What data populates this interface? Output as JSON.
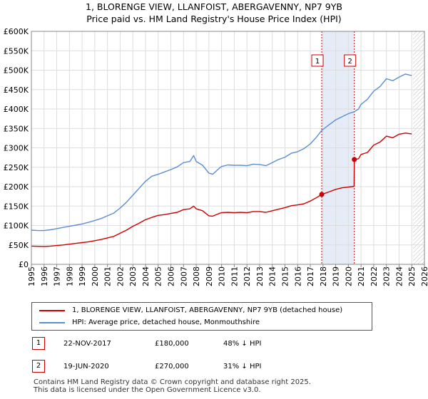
{
  "title_line1": "1, BLORENGE VIEW, LLANFOIST, ABERGAVENNY, NP7 9YB",
  "title_line2": "Price paid vs. HM Land Registry's House Price Index (HPI)",
  "legend": {
    "property_label": "1, BLORENGE VIEW, LLANFOIST, ABERGAVENNY, NP7 9YB (detached house)",
    "hpi_label": "HPI: Average price, detached house, Monmouthshire"
  },
  "transactions": [
    {
      "marker": "1",
      "date": "22-NOV-2017",
      "price": "£180,000",
      "hpi": "48% ↓ HPI"
    },
    {
      "marker": "2",
      "date": "19-JUN-2020",
      "price": "£270,000",
      "hpi": "31% ↓ HPI"
    }
  ],
  "footer_line1": "Contains HM Land Registry data © Crown copyright and database right 2025.",
  "footer_line2": "This data is licensed under the Open Government Licence v3.0.",
  "colors": {
    "property": "#cc0000",
    "hpi": "#5b8ed0",
    "grid": "#dddddd",
    "shade": "#e6ecf7",
    "marker_line": "#cc0000"
  },
  "chart_data": {
    "type": "line",
    "xlim": [
      1995,
      2026
    ],
    "ylim": [
      0,
      600000
    ],
    "x_ticks": [
      "1995",
      "1996",
      "1997",
      "1998",
      "1999",
      "2000",
      "2001",
      "2002",
      "2003",
      "2004",
      "2005",
      "2006",
      "2007",
      "2008",
      "2009",
      "2010",
      "2011",
      "2012",
      "2013",
      "2014",
      "2015",
      "2016",
      "2017",
      "2018",
      "2019",
      "2020",
      "2021",
      "2022",
      "2023",
      "2024",
      "2025",
      "2026"
    ],
    "y_ticks": [
      {
        "value": 0,
        "label": "£0"
      },
      {
        "value": 50000,
        "label": "£50K"
      },
      {
        "value": 100000,
        "label": "£100K"
      },
      {
        "value": 150000,
        "label": "£150K"
      },
      {
        "value": 200000,
        "label": "£200K"
      },
      {
        "value": 250000,
        "label": "£250K"
      },
      {
        "value": 300000,
        "label": "£300K"
      },
      {
        "value": 350000,
        "label": "£350K"
      },
      {
        "value": 400000,
        "label": "£400K"
      },
      {
        "value": 450000,
        "label": "£450K"
      },
      {
        "value": 500000,
        "label": "£500K"
      },
      {
        "value": 550000,
        "label": "£550K"
      },
      {
        "value": 600000,
        "label": "£600K"
      }
    ],
    "grid": true,
    "legend_position": "below",
    "shaded_periods": [
      [
        2017.9,
        2020.47
      ]
    ],
    "hatched_region": [
      2025.1,
      2026
    ],
    "sales": [
      {
        "label": "1",
        "x": 2017.9,
        "y": 180000
      },
      {
        "label": "2",
        "x": 2020.47,
        "y": 270000
      }
    ],
    "series": [
      {
        "name": "1, BLORENGE VIEW, LLANFOIST, ABERGAVENNY, NP7 9YB (detached house)",
        "points": [
          [
            1995,
            47000
          ],
          [
            1995.5,
            46500
          ],
          [
            1996,
            46000
          ],
          [
            1996.5,
            47000
          ],
          [
            1997,
            48500
          ],
          [
            1997.5,
            50000
          ],
          [
            1998,
            52000
          ],
          [
            1998.5,
            54000
          ],
          [
            1999,
            56000
          ],
          [
            1999.5,
            58000
          ],
          [
            2000,
            61000
          ],
          [
            2000.5,
            64000
          ],
          [
            2001,
            68000
          ],
          [
            2001.5,
            72000
          ],
          [
            2002,
            80000
          ],
          [
            2002.5,
            88000
          ],
          [
            2003,
            98000
          ],
          [
            2003.5,
            106000
          ],
          [
            2004,
            115000
          ],
          [
            2004.5,
            121000
          ],
          [
            2005,
            126000
          ],
          [
            2005.5,
            128000
          ],
          [
            2006,
            131000
          ],
          [
            2006.5,
            134000
          ],
          [
            2007,
            141000
          ],
          [
            2007.5,
            143000
          ],
          [
            2007.8,
            150000
          ],
          [
            2008,
            143000
          ],
          [
            2008.5,
            138000
          ],
          [
            2009,
            125000
          ],
          [
            2009.3,
            124000
          ],
          [
            2009.8,
            131000
          ],
          [
            2010,
            133000
          ],
          [
            2010.5,
            134000
          ],
          [
            2011,
            133000
          ],
          [
            2011.5,
            134000
          ],
          [
            2012,
            133000
          ],
          [
            2012.5,
            136000
          ],
          [
            2013,
            136000
          ],
          [
            2013.5,
            134000
          ],
          [
            2014,
            138000
          ],
          [
            2014.5,
            142000
          ],
          [
            2015,
            146000
          ],
          [
            2015.5,
            151000
          ],
          [
            2016,
            153000
          ],
          [
            2016.5,
            156000
          ],
          [
            2017,
            163000
          ],
          [
            2017.5,
            172000
          ],
          [
            2017.9,
            180000
          ],
          [
            2018.5,
            187000
          ],
          [
            2019,
            193000
          ],
          [
            2019.5,
            197000
          ],
          [
            2020,
            199000
          ],
          [
            2020.45,
            201000
          ],
          [
            2020.47,
            270000
          ],
          [
            2020.8,
            272000
          ],
          [
            2021,
            283000
          ],
          [
            2021.5,
            288000
          ],
          [
            2022,
            307000
          ],
          [
            2022.5,
            315000
          ],
          [
            2023,
            330000
          ],
          [
            2023.5,
            326000
          ],
          [
            2024,
            335000
          ],
          [
            2024.5,
            338000
          ],
          [
            2025,
            336000
          ]
        ]
      },
      {
        "name": "HPI: Average price, detached house, Monmouthshire",
        "points": [
          [
            1995,
            88000
          ],
          [
            1995.5,
            87000
          ],
          [
            1996,
            87000
          ],
          [
            1996.5,
            89000
          ],
          [
            1997,
            92000
          ],
          [
            1997.5,
            95000
          ],
          [
            1998,
            98000
          ],
          [
            1998.5,
            101000
          ],
          [
            1999,
            104000
          ],
          [
            1999.5,
            108000
          ],
          [
            2000,
            113000
          ],
          [
            2000.5,
            118000
          ],
          [
            2001,
            125000
          ],
          [
            2001.5,
            132000
          ],
          [
            2002,
            145000
          ],
          [
            2002.5,
            160000
          ],
          [
            2003,
            178000
          ],
          [
            2003.5,
            196000
          ],
          [
            2004,
            214000
          ],
          [
            2004.5,
            227000
          ],
          [
            2005,
            232000
          ],
          [
            2005.5,
            238000
          ],
          [
            2006,
            244000
          ],
          [
            2006.5,
            251000
          ],
          [
            2007,
            262000
          ],
          [
            2007.5,
            265000
          ],
          [
            2007.8,
            280000
          ],
          [
            2008,
            265000
          ],
          [
            2008.5,
            255000
          ],
          [
            2009,
            235000
          ],
          [
            2009.3,
            232000
          ],
          [
            2009.8,
            247000
          ],
          [
            2010,
            252000
          ],
          [
            2010.5,
            256000
          ],
          [
            2011,
            255000
          ],
          [
            2011.5,
            255000
          ],
          [
            2012,
            254000
          ],
          [
            2012.5,
            258000
          ],
          [
            2013,
            257000
          ],
          [
            2013.5,
            254000
          ],
          [
            2014,
            262000
          ],
          [
            2014.5,
            270000
          ],
          [
            2015,
            276000
          ],
          [
            2015.5,
            286000
          ],
          [
            2016,
            290000
          ],
          [
            2016.5,
            298000
          ],
          [
            2017,
            310000
          ],
          [
            2017.5,
            328000
          ],
          [
            2017.9,
            345000
          ],
          [
            2018.5,
            360000
          ],
          [
            2019,
            372000
          ],
          [
            2019.5,
            380000
          ],
          [
            2020,
            388000
          ],
          [
            2020.47,
            393000
          ],
          [
            2020.8,
            400000
          ],
          [
            2021,
            412000
          ],
          [
            2021.5,
            425000
          ],
          [
            2022,
            446000
          ],
          [
            2022.5,
            458000
          ],
          [
            2023,
            478000
          ],
          [
            2023.5,
            473000
          ],
          [
            2024,
            482000
          ],
          [
            2024.5,
            490000
          ],
          [
            2025,
            486000
          ]
        ]
      }
    ]
  }
}
